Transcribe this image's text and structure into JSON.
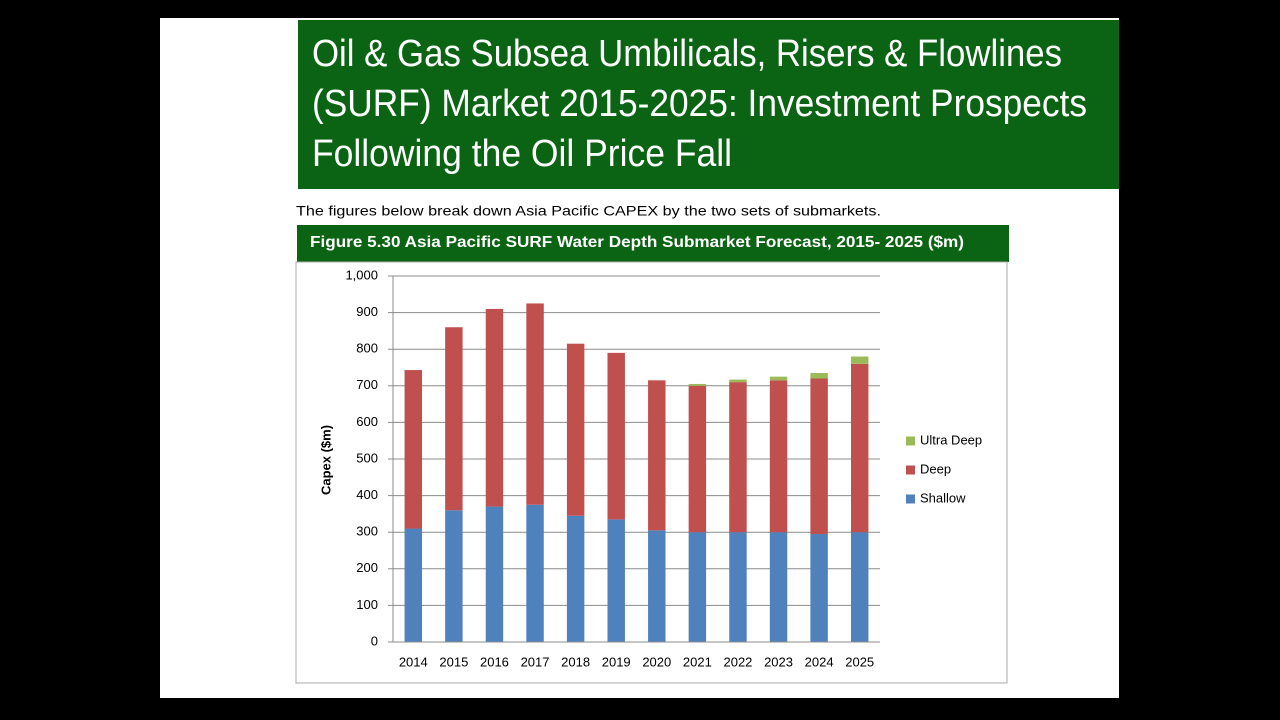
{
  "slide": {
    "title_lines": [
      "Oil & Gas Subsea Umbilicals, Risers & Flowlines",
      "(SURF) Market 2015-2025: Investment Prospects",
      "Following the Oil Price Fall"
    ],
    "intro": "The figures below break down Asia Pacific CAPEX by the two sets of submarkets."
  },
  "chart_data": {
    "type": "stacked_bar",
    "title": "Figure 5.30 Asia Pacific SURF Water Depth Submarket Forecast, 2015- 2025 ($m)",
    "y_label": "Capex ($m)",
    "categories": [
      "2014",
      "2015",
      "2016",
      "2017",
      "2018",
      "2019",
      "2020",
      "2021",
      "2022",
      "2023",
      "2024",
      "2025"
    ],
    "series": [
      {
        "name": "Shallow",
        "color": "#4f81bd",
        "values": [
          310,
          360,
          370,
          375,
          345,
          335,
          305,
          300,
          300,
          300,
          295,
          300
        ]
      },
      {
        "name": "Deep",
        "color": "#c0504d",
        "values": [
          433,
          500,
          540,
          550,
          470,
          455,
          410,
          400,
          410,
          415,
          425,
          460
        ]
      },
      {
        "name": "Ultra Deep",
        "color": "#9bbb59",
        "values": [
          0,
          0,
          0,
          0,
          0,
          0,
          0,
          5,
          7,
          10,
          15,
          20
        ]
      }
    ],
    "ylim": [
      0,
      1000
    ],
    "yticks": [
      0,
      100,
      200,
      300,
      400,
      500,
      600,
      700,
      800,
      900,
      {
        "value": 1000,
        "label": "1,000"
      }
    ],
    "grid": true,
    "legend": "right"
  }
}
